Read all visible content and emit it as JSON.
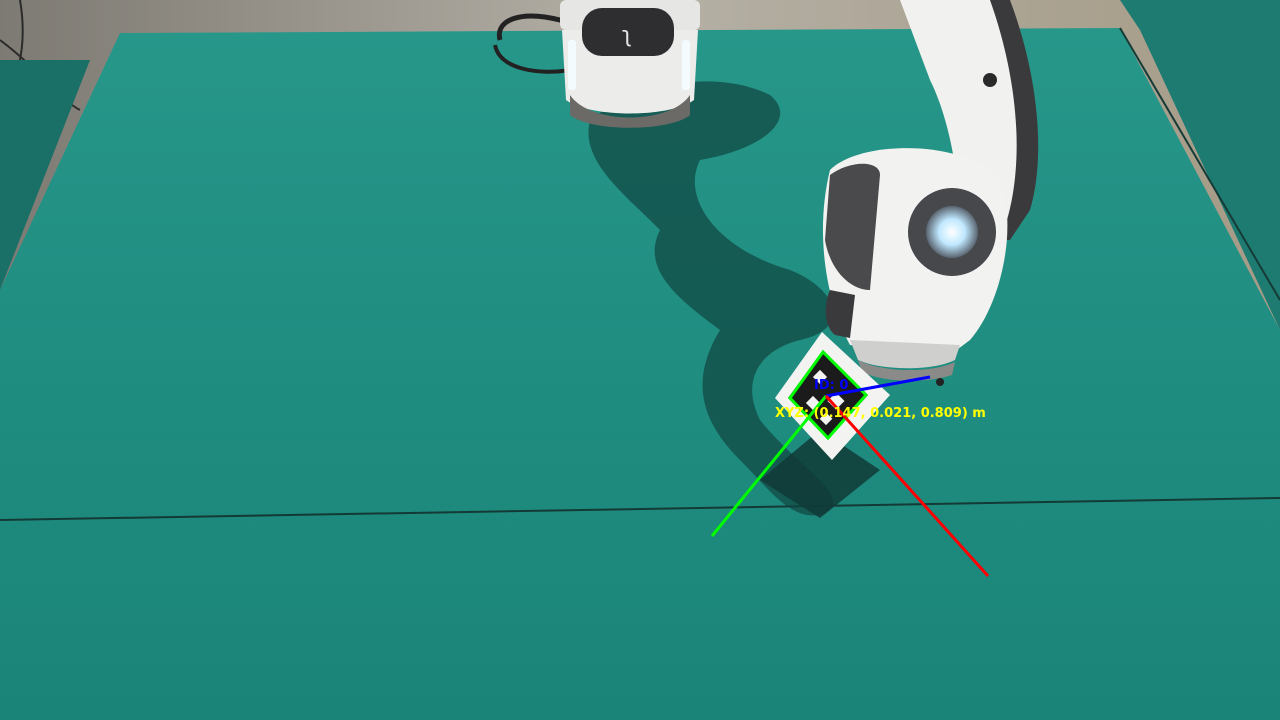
{
  "camera_view": {
    "marker": {
      "id_label": "ID: 0",
      "xyz_label": "XYZ: (0.147, 0.021, 0.809) m"
    },
    "colors": {
      "table": "#1f8c80",
      "marker_outline": "#00ff00",
      "axis_x": "#ff0000",
      "axis_y": "#00ff00",
      "axis_z": "#0000ff",
      "xyz_text": "#ffff00",
      "id_text": "#0000ff"
    },
    "icons": {
      "robot_base": "robot-arm-base-icon",
      "robot_arm": "robot-arm-icon",
      "marker": "aruco-marker-icon"
    }
  }
}
